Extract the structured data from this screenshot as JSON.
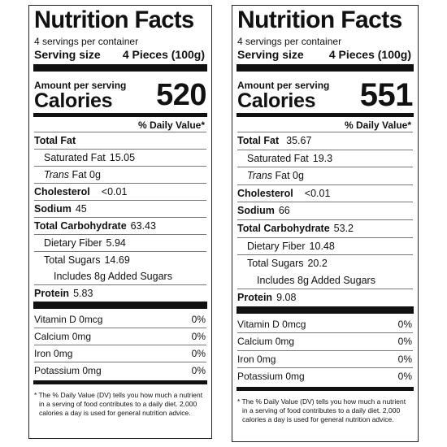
{
  "labels": [
    {
      "title": "Nutrition Facts",
      "servings": "4 servings per container",
      "serving_size_label": "Serving size",
      "serving_size_value": "4 Pieces (100g)",
      "amount_per_serving": "Amount per serving",
      "calories_label": "Calories",
      "calories": "520",
      "dv_header": "% Daily Value*",
      "total_fat_label": "Total Fat",
      "total_fat": "",
      "sat_fat_label": "Saturated Fat",
      "sat_fat": "15.05",
      "trans_fat_label": "Trans",
      "trans_fat": "Fat 0g",
      "cholesterol_label": "Cholesterol",
      "cholesterol": "<0.01",
      "sodium_label": "Sodium",
      "sodium": "45",
      "carb_label": "Total Carbohydrate",
      "carb": "63.43",
      "fiber_label": "Dietary Fiber",
      "fiber": "5.94",
      "sugars_label": "Total Sugars",
      "sugars": "14.69",
      "added_sugars": "Includes 8g Added Sugars",
      "protein_label": "Protein",
      "protein": "5.83",
      "vitamins": [
        {
          "name": "Vitamin D",
          "amount": "0mcg",
          "dv": "0%"
        },
        {
          "name": "Calcium",
          "amount": "0mg",
          "dv": "0%"
        },
        {
          "name": "Iron",
          "amount": "0mg",
          "dv": "0%"
        },
        {
          "name": "Potassium",
          "amount": "0mg",
          "dv": "0%"
        }
      ],
      "footnote": "* The % Daily Value (DV) tells you how much a nutrient in a serving of food contributes to a daily diet. 2,000 calories a day is used for general nutrition advice."
    },
    {
      "title": "Nutrition Facts",
      "servings": "4 servings per container",
      "serving_size_label": "Serving size",
      "serving_size_value": "4 Pieces (100g)",
      "amount_per_serving": "Amount per serving",
      "calories_label": "Calories",
      "calories": "551",
      "dv_header": "% Daily Value*",
      "total_fat_label": "Total Fat",
      "total_fat": "35.67",
      "sat_fat_label": "Saturated Fat",
      "sat_fat": "19.3",
      "trans_fat_label": "Trans",
      "trans_fat": "Fat 0g",
      "cholesterol_label": "Cholesterol",
      "cholesterol": "<0.01",
      "sodium_label": "Sodium",
      "sodium": "66",
      "carb_label": "Total Carbohydrate",
      "carb": "53.2",
      "fiber_label": "Dietary Fiber",
      "fiber": "10.48",
      "sugars_label": "Total Sugars",
      "sugars": "20.2",
      "added_sugars": "Includes 8g Added Sugars",
      "protein_label": "Protein",
      "protein": "9.08",
      "vitamins": [
        {
          "name": "Vitamin D",
          "amount": "0mcg",
          "dv": "0%"
        },
        {
          "name": "Calcium",
          "amount": "0mg",
          "dv": "0%"
        },
        {
          "name": "Iron",
          "amount": "0mg",
          "dv": "0%"
        },
        {
          "name": "Potassium",
          "amount": "0mg",
          "dv": "0%"
        }
      ],
      "footnote": "* The % Daily Value (DV) tells you how much a nutrient in a serving of food contributes to a daily diet. 2,000 calories a day is used for general nutrition advice."
    }
  ]
}
